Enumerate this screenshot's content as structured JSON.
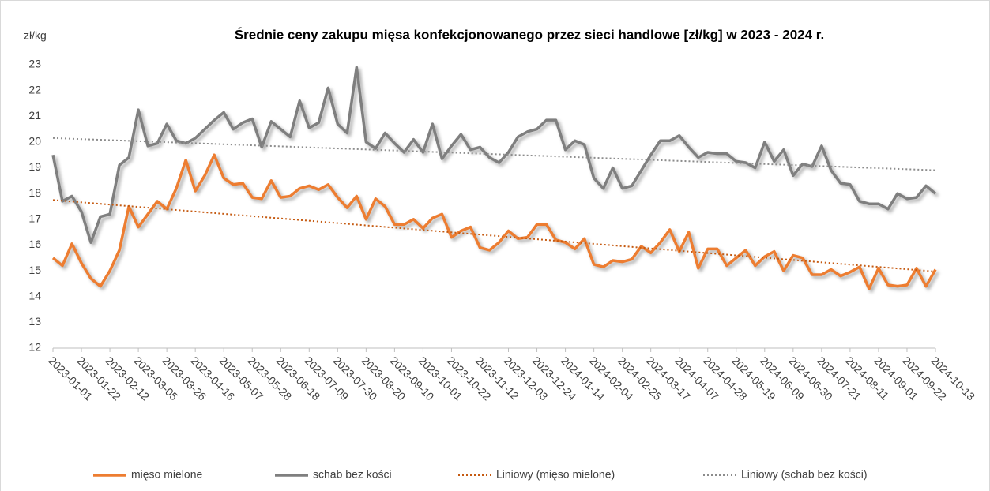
{
  "chart_data": {
    "type": "line",
    "title": "Średnie ceny zakupu mięsa konfekcjonowanego przez sieci handlowe [zł/kg]  w 2023 - 2024 r.",
    "y_label": "zł/kg",
    "categories": [
      "2023-01-01",
      null,
      null,
      "2023-01-22",
      null,
      null,
      "2023-02-12",
      null,
      null,
      "2023-03-05",
      null,
      null,
      "2023-03-26",
      null,
      null,
      "2023-04-16",
      null,
      null,
      "2023-05-07",
      null,
      null,
      "2023-05-28",
      null,
      null,
      "2023-06-18",
      null,
      null,
      "2023-07-09",
      null,
      null,
      "2023-07-30",
      null,
      null,
      "2023-08-20",
      null,
      null,
      "2023-09-10",
      null,
      null,
      "2023-10-01",
      null,
      null,
      "2023-10-22",
      null,
      null,
      "2023-11-12",
      null,
      null,
      "2023-12-03",
      null,
      null,
      "2023-12-24",
      null,
      null,
      "2024-01-14",
      null,
      null,
      "2024-02-04",
      null,
      null,
      "2024-02-25",
      null,
      null,
      "2024-03-17",
      null,
      null,
      "2024-04-07",
      null,
      null,
      "2024-04-28",
      null,
      null,
      "2024-05-19",
      null,
      null,
      "2024-06-09",
      null,
      null,
      "2024-06-30",
      null,
      null,
      "2024-07-21",
      null,
      null,
      "2024-08-11",
      null,
      null,
      "2024-09-01",
      null,
      null,
      "2024-09-22",
      null,
      null,
      "2024-10-13"
    ],
    "series": [
      {
        "name": "mięso mielone",
        "color": "#ed7d31",
        "trendline": {
          "name": "Liniowy (mięso mielone)",
          "color": "#c55a11"
        },
        "values": [
          15.5,
          15.2,
          16.05,
          15.3,
          14.7,
          14.4,
          15.0,
          15.8,
          17.5,
          16.7,
          17.2,
          17.7,
          17.4,
          18.2,
          19.3,
          18.1,
          18.7,
          19.5,
          18.6,
          18.35,
          18.4,
          17.85,
          17.8,
          18.5,
          17.85,
          17.9,
          18.2,
          18.3,
          18.15,
          18.35,
          17.85,
          17.45,
          17.9,
          17.0,
          17.8,
          17.5,
          16.8,
          16.8,
          17.0,
          16.65,
          17.05,
          17.2,
          16.3,
          16.55,
          16.7,
          15.9,
          15.8,
          16.1,
          16.55,
          16.25,
          16.3,
          16.8,
          16.8,
          16.2,
          16.1,
          15.85,
          16.25,
          15.25,
          15.15,
          15.4,
          15.35,
          15.45,
          15.95,
          15.7,
          16.1,
          16.6,
          15.75,
          16.5,
          15.1,
          15.85,
          15.85,
          15.2,
          15.5,
          15.8,
          15.2,
          15.55,
          15.75,
          15.0,
          15.6,
          15.5,
          14.85,
          14.85,
          15.05,
          14.8,
          14.95,
          15.15,
          14.3,
          15.1,
          14.45,
          14.4,
          14.45,
          15.1,
          14.4,
          15.05
        ]
      },
      {
        "name": "schab bez kości",
        "color": "#7f7f7f",
        "trendline": {
          "name": "Liniowy (schab bez kości)",
          "color": "#8c8c8c"
        },
        "values": [
          19.5,
          17.7,
          17.9,
          17.3,
          16.1,
          17.1,
          17.2,
          19.1,
          19.4,
          21.25,
          19.85,
          19.95,
          20.7,
          20.05,
          19.95,
          20.15,
          20.5,
          20.85,
          21.15,
          20.5,
          20.75,
          20.9,
          19.8,
          20.8,
          20.5,
          20.2,
          21.6,
          20.55,
          20.75,
          22.1,
          20.7,
          20.35,
          22.9,
          20.0,
          19.75,
          20.35,
          19.95,
          19.6,
          20.1,
          19.6,
          20.7,
          19.35,
          19.85,
          20.3,
          19.7,
          19.8,
          19.4,
          19.2,
          19.6,
          20.2,
          20.4,
          20.5,
          20.85,
          20.85,
          19.7,
          20.05,
          19.9,
          18.6,
          18.2,
          19.0,
          18.2,
          18.3,
          18.9,
          19.5,
          20.05,
          20.05,
          20.25,
          19.8,
          19.4,
          19.6,
          19.55,
          19.55,
          19.25,
          19.2,
          19.0,
          20.0,
          19.25,
          19.7,
          18.7,
          19.15,
          19.05,
          19.85,
          18.9,
          18.4,
          18.35,
          17.7,
          17.6,
          17.6,
          17.4,
          18.0,
          17.8,
          17.85,
          18.3,
          18.0
        ]
      }
    ],
    "ylim": [
      12,
      23
    ],
    "yticks": [
      12,
      13,
      14,
      15,
      16,
      17,
      18,
      19,
      20,
      21,
      22,
      23
    ],
    "grid": false,
    "legend": "bottom"
  }
}
